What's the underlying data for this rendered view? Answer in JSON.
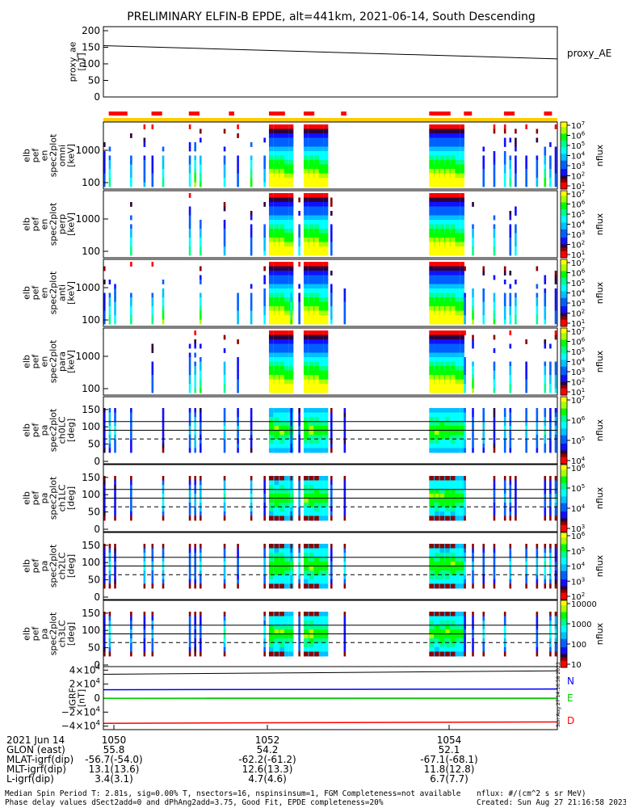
{
  "chart_data": {
    "type": "heatmap",
    "title": "PRELIMINARY ELFIN-B EPDE, alt=441km, 2021-06-14, South Descending",
    "proxy_ae": {
      "ylabel_lines": [
        "proxy_ae",
        "[nT]"
      ],
      "legend": "proxy_AE",
      "yticks": [
        "200",
        "150",
        "100",
        "50",
        "0"
      ],
      "ylim": [
        0,
        200
      ],
      "x": [
        0,
        1
      ],
      "y": [
        155,
        115
      ]
    },
    "time_axis": {
      "tick_labels": [
        "1050",
        "1052",
        "1054"
      ],
      "date_label": "2021 Jun 14"
    },
    "science_bars": [
      [
        0.02,
        0.09
      ],
      [
        0.18,
        0.22
      ],
      [
        0.32,
        0.36
      ],
      [
        0.47,
        0.49
      ],
      [
        0.62,
        0.68
      ],
      [
        0.75,
        0.79
      ],
      [
        0.89,
        0.91
      ],
      [
        1.22,
        1.3
      ],
      [
        1.35,
        1.38
      ],
      [
        1.5,
        1.54
      ],
      [
        1.65,
        1.68
      ]
    ],
    "panels": [
      {
        "id": "en-omni",
        "ylabel_lines": [
          "elb",
          "pef",
          "en",
          "spec2plot",
          "omni",
          "[keV]"
        ],
        "yticks": [
          "1000",
          "100"
        ],
        "cbar_label": "nflux",
        "cbar_ticks": [
          "10^7",
          "10^6",
          "10^5",
          "10^4",
          "10^3",
          "10^2",
          "10^1"
        ],
        "kind": "energy"
      },
      {
        "id": "en-perp",
        "ylabel_lines": [
          "elb",
          "pef",
          "en",
          "spec2plot",
          "perp",
          "[keV]"
        ],
        "yticks": [
          "1000",
          "100"
        ],
        "cbar_label": "nflux",
        "cbar_ticks": [
          "10^7",
          "10^6",
          "10^5",
          "10^4",
          "10^3",
          "10^2",
          "10^1"
        ],
        "kind": "energy"
      },
      {
        "id": "en-anti",
        "ylabel_lines": [
          "elb",
          "pef",
          "en",
          "spec2plot",
          "anti",
          "[keV]"
        ],
        "yticks": [
          "1000",
          "100"
        ],
        "cbar_label": "nflux",
        "cbar_ticks": [
          "10^7",
          "10^6",
          "10^5",
          "10^4",
          "10^3",
          "10^2",
          "10^1"
        ],
        "kind": "energy"
      },
      {
        "id": "en-para",
        "ylabel_lines": [
          "elb",
          "pef",
          "en",
          "spec2plot",
          "para",
          "[keV]"
        ],
        "yticks": [
          "1000",
          "100"
        ],
        "cbar_label": "nflux",
        "cbar_ticks": [
          "10^7",
          "10^6",
          "10^5",
          "10^4",
          "10^3",
          "10^2",
          "10^1"
        ],
        "kind": "energy"
      },
      {
        "id": "pa-ch0",
        "ylabel_lines": [
          "elb",
          "pef",
          "pa",
          "spec2plot",
          "ch0LC",
          "[deg]"
        ],
        "yticks": [
          "150",
          "100",
          "50",
          "0"
        ],
        "cbar_label": "nflux",
        "cbar_ticks": [
          "10^7",
          "10^6",
          "10^5",
          "10^4"
        ],
        "kind": "pa"
      },
      {
        "id": "pa-ch1",
        "ylabel_lines": [
          "elb",
          "pef",
          "pa",
          "spec2plot",
          "ch1LC",
          "[deg]"
        ],
        "yticks": [
          "150",
          "100",
          "50",
          "0"
        ],
        "cbar_label": "nflux",
        "cbar_ticks": [
          "10^6",
          "10^5",
          "10^4",
          "10^3"
        ],
        "kind": "pa"
      },
      {
        "id": "pa-ch2",
        "ylabel_lines": [
          "elb",
          "pef",
          "pa",
          "spec2plot",
          "ch2LC",
          "[deg]"
        ],
        "yticks": [
          "150",
          "100",
          "50",
          "0"
        ],
        "cbar_label": "nflux",
        "cbar_ticks": [
          "10^6",
          "10^5",
          "10^4",
          "10^3",
          "10^2"
        ],
        "kind": "pa"
      },
      {
        "id": "pa-ch3",
        "ylabel_lines": [
          "elb",
          "pef",
          "pa",
          "spec2plot",
          "ch3LC",
          "[deg]"
        ],
        "yticks": [
          "150",
          "100",
          "50",
          "0"
        ],
        "cbar_label": "nflux",
        "cbar_ticks": [
          "10000",
          "1000",
          "100",
          "10"
        ],
        "kind": "pa"
      }
    ],
    "igrf": {
      "ylabel_lines": [
        "IGRF",
        "[nT]"
      ],
      "yticks": [
        "4×10^4",
        "2×10^4",
        "0",
        "−2×10^4",
        "−4×10^4"
      ],
      "ylim": [
        -45000,
        45000
      ],
      "series": [
        {
          "name": "N",
          "color": "#0000ff",
          "y": [
            12000,
            13000
          ]
        },
        {
          "name": "E",
          "color": "#00cc00",
          "y": [
            -500,
            -600
          ]
        },
        {
          "name": "D",
          "color": "#ff0000",
          "y": [
            -36000,
            -34000
          ]
        }
      ],
      "top_line": [
        34000,
        39000
      ]
    },
    "orbit_rows": [
      {
        "label": "2021 Jun 14",
        "values": [
          "1050",
          "1052",
          "1054"
        ]
      },
      {
        "label": "GLON (east)",
        "values": [
          "55.8",
          "54.2",
          "52.1"
        ]
      },
      {
        "label": "MLAT-igrf(dip)",
        "values": [
          "-56.7(-54.0)",
          "-62.2(-61.2)",
          "-67.1(-68.1)"
        ]
      },
      {
        "label": "MLT-igrf(dip)",
        "values": [
          "13.1(13.6)",
          "12.6(13.3)",
          "11.8(12.8)"
        ]
      },
      {
        "label": "L-igrf(dip)",
        "values": [
          "3.4(3.1)",
          "4.7(4.6)",
          "6.7(7.7)"
        ]
      }
    ],
    "footer": {
      "line1": "Median Spin Period T: 2.81s, sig=0.00% T, nsectors=16, nspinsinsum=1, FGM Completeness=not available",
      "line2": "Phase delay values dSect2add=0 and dPhAng2add=3.75, Good Fit, EPDE completeness=20%",
      "units": "nflux: #/(cm^2 s sr MeV)",
      "created": "Created: Sun Aug 27 21:16:58 2023"
    },
    "side_stamp": "Sun Aug 27 14:16:58 2023"
  }
}
